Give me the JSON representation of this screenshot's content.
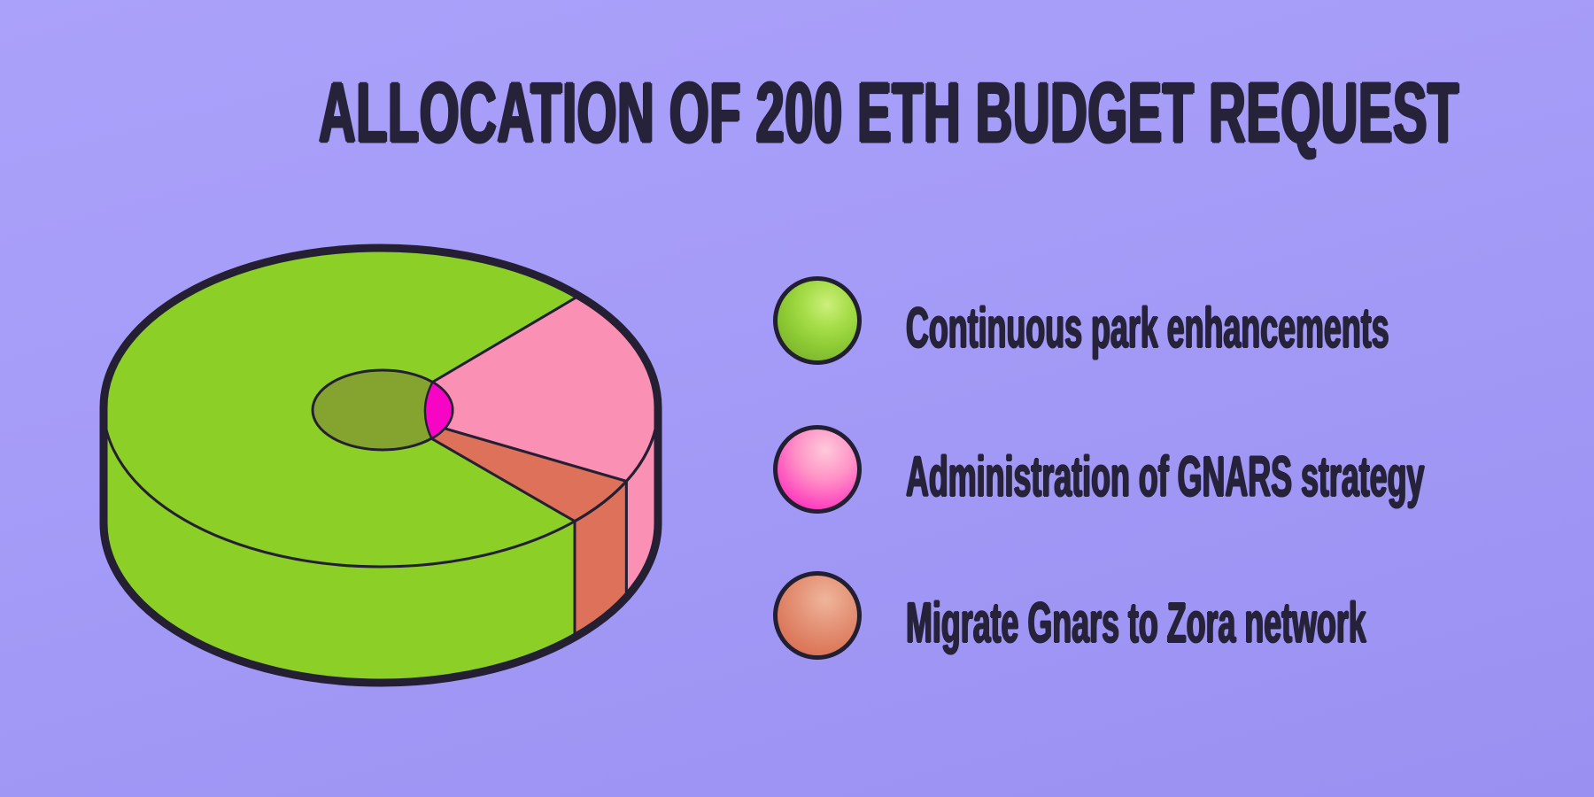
{
  "title": "ALLOCATION OF 200 ETH BUDGET REQUEST",
  "colors": {
    "background": "#a29af7",
    "outline": "#241f33",
    "text": "#262239",
    "hole_floor": "#84a42f",
    "hole_inner_wall": "#f704c4"
  },
  "chart_data": {
    "type": "pie",
    "style": "3d-donut",
    "title": "ALLOCATION OF 200 ETH BUDGET REQUEST",
    "total_budget_eth": 200,
    "legend_position": "right",
    "slices": [
      {
        "label": "Continuous park enhancements",
        "percent_est": 75,
        "eth_est": 150,
        "color": "#8ccf27"
      },
      {
        "label": "Administration of GNARS strategy",
        "percent_est": 20,
        "eth_est": 40,
        "color": "#fb90b5"
      },
      {
        "label": "Migrate Gnars to Zora network",
        "percent_est": 5,
        "eth_est": 10,
        "color": "#de715a"
      }
    ]
  },
  "legend": {
    "items": [
      {
        "label": "Continuous park enhancements",
        "color": "#8bc933"
      },
      {
        "label": "Administration of GNARS strategy",
        "color": "#ff4fc0"
      },
      {
        "label": "Migrate Gnars to Zora network",
        "color": "#dd7a5d"
      }
    ]
  }
}
